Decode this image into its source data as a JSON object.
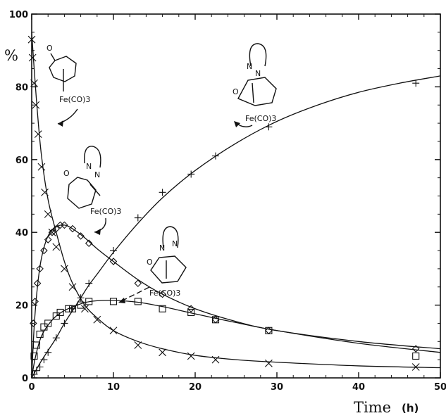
{
  "chart_data": {
    "type": "scatter",
    "title": "",
    "ylabel": "%",
    "xlabel": "Time",
    "xunit": "(h)",
    "xlim": [
      0,
      50
    ],
    "ylim": [
      0,
      100
    ],
    "x_ticks": [
      0,
      10,
      20,
      30,
      40,
      50
    ],
    "y_ticks": [
      0,
      20,
      40,
      60,
      80,
      100
    ],
    "grid": false,
    "legend": "none",
    "annotations": [
      {
        "text": "Fe(CO)3"
      },
      {
        "text": "Fe(CO)3"
      },
      {
        "text": "Fe(CO)3"
      },
      {
        "text": "Fe(CO)3"
      }
    ],
    "series": [
      {
        "marker": "x",
        "x": [
          0,
          0.1,
          0.3,
          0.5,
          0.8,
          1.2,
          1.6,
          2.0,
          2.5,
          3.0,
          4.0,
          5.0,
          6.5,
          8.0,
          10.0,
          13.0,
          16.0,
          19.5,
          22.5,
          29.0,
          47.0
        ],
        "y": [
          93,
          88,
          81,
          75,
          67,
          58,
          51,
          45,
          40,
          36,
          30,
          25,
          19,
          16,
          13,
          9,
          7,
          6,
          5,
          4,
          3
        ]
      },
      {
        "marker": "diamond",
        "x": [
          0.2,
          0.4,
          0.7,
          1.0,
          1.5,
          2.0,
          2.5,
          3.0,
          3.5,
          4.0,
          5.0,
          6.0,
          7.0,
          10.0,
          13.0,
          16.0,
          19.5,
          22.5,
          29.0,
          47.0
        ],
        "y": [
          15,
          21,
          26,
          30,
          35,
          38,
          40,
          41,
          42,
          42,
          41,
          39,
          37,
          32,
          26,
          23,
          19,
          16,
          13,
          8
        ]
      },
      {
        "marker": "square",
        "x": [
          0.3,
          0.6,
          1.0,
          1.5,
          2.0,
          3.0,
          3.5,
          4.5,
          5.0,
          6.0,
          7.0,
          10.0,
          13.0,
          16.0,
          19.5,
          22.5,
          29.0,
          47.0
        ],
        "y": [
          6,
          9,
          12,
          14,
          15,
          17,
          18,
          19,
          19,
          20,
          21,
          21,
          21,
          19,
          18,
          16,
          13,
          6
        ]
      },
      {
        "marker": "plus",
        "x": [
          0.3,
          0.6,
          1.0,
          1.5,
          2.0,
          3.0,
          4.0,
          5.0,
          6.0,
          7.0,
          10.0,
          13.0,
          16.0,
          19.5,
          22.5,
          29.0,
          47.0
        ],
        "y": [
          1,
          2,
          3,
          5,
          7,
          11,
          15,
          19,
          22,
          26,
          35,
          44,
          51,
          56,
          61,
          69,
          81
        ]
      }
    ],
    "curves": [
      {
        "x": [
          0,
          0.3,
          0.7,
          1.2,
          2.0,
          3.0,
          4.0,
          5.0,
          6.5,
          8.0,
          10.0,
          13.0,
          16.0,
          20.0,
          25.0,
          30.0,
          40.0,
          50.0
        ],
        "y": [
          95,
          85,
          73,
          61,
          49,
          40,
          32,
          26,
          20,
          16.5,
          13,
          10,
          8,
          6.2,
          5,
          4.3,
          3.3,
          2.8
        ]
      },
      {
        "x": [
          0,
          0.3,
          0.7,
          1.2,
          2.0,
          3.0,
          4.0,
          5.0,
          6.5,
          8.0,
          10.0,
          13.0,
          16.0,
          20.0,
          25.0,
          30.0,
          40.0,
          50.0
        ],
        "y": [
          0,
          14,
          25,
          33,
          39,
          41.5,
          42,
          41,
          38.5,
          35.5,
          32,
          27,
          23,
          19,
          15.5,
          13,
          10,
          8
        ]
      },
      {
        "x": [
          0,
          0.3,
          0.7,
          1.2,
          2.0,
          3.0,
          4.0,
          5.0,
          6.5,
          8.0,
          10.0,
          13.0,
          16.0,
          20.0,
          25.0,
          30.0,
          40.0,
          50.0
        ],
        "y": [
          0,
          4,
          8,
          11.5,
          14.5,
          17,
          18.5,
          19.5,
          20.7,
          21.2,
          21.3,
          20.8,
          19.6,
          17.6,
          15.2,
          13,
          9.5,
          7
        ]
      },
      {
        "x": [
          0,
          1.0,
          2.0,
          3.0,
          4.0,
          5.0,
          6.0,
          7.0,
          8.0,
          10.0,
          13.0,
          16.0,
          20.0,
          25.0,
          30.0,
          35.0,
          40.0,
          45.0,
          50.0
        ],
        "y": [
          0,
          4,
          7.5,
          11,
          15,
          18.5,
          22,
          25.5,
          28.5,
          34.5,
          42.5,
          49.5,
          57,
          64.5,
          70.5,
          75,
          78.5,
          81,
          83
        ]
      }
    ]
  }
}
